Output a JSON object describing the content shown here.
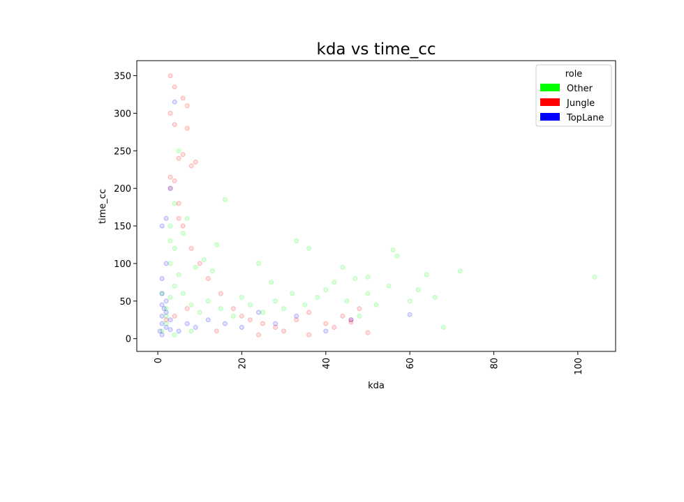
{
  "chart_data": {
    "type": "scatter",
    "title": "kda vs time_cc",
    "xlabel": "kda",
    "ylabel": "time_cc",
    "xlim": [
      -5,
      109
    ],
    "ylim": [
      -17,
      370
    ],
    "xticks": [
      0,
      20,
      40,
      60,
      80,
      100
    ],
    "yticks": [
      0,
      50,
      100,
      150,
      200,
      250,
      300,
      350
    ],
    "xtick_labels": [
      "0",
      "20",
      "40",
      "60",
      "80",
      "100"
    ],
    "ytick_labels": [
      "0",
      "50",
      "100",
      "150",
      "200",
      "250",
      "300",
      "350"
    ],
    "legend": {
      "title": "role",
      "placement": "top-right",
      "entries": [
        {
          "label": "Other",
          "color": "#00ff00"
        },
        {
          "label": "Jungle",
          "color": "#ff0000"
        },
        {
          "label": "TopLane",
          "color": "#0000ff"
        }
      ]
    },
    "grid": false,
    "series": [
      {
        "name": "Other",
        "color": "#00ff00",
        "points": [
          [
            2,
            40
          ],
          [
            3,
            55
          ],
          [
            4,
            70
          ],
          [
            5,
            85
          ],
          [
            3,
            100
          ],
          [
            4,
            120
          ],
          [
            2,
            30
          ],
          [
            6,
            60
          ],
          [
            8,
            45
          ],
          [
            10,
            35
          ],
          [
            12,
            50
          ],
          [
            15,
            40
          ],
          [
            18,
            30
          ],
          [
            20,
            55
          ],
          [
            22,
            45
          ],
          [
            25,
            35
          ],
          [
            28,
            50
          ],
          [
            30,
            40
          ],
          [
            32,
            60
          ],
          [
            35,
            45
          ],
          [
            38,
            55
          ],
          [
            40,
            65
          ],
          [
            42,
            75
          ],
          [
            45,
            50
          ],
          [
            47,
            80
          ],
          [
            50,
            60
          ],
          [
            52,
            45
          ],
          [
            55,
            70
          ],
          [
            57,
            110
          ],
          [
            60,
            50
          ],
          [
            62,
            65
          ],
          [
            64,
            85
          ],
          [
            66,
            55
          ],
          [
            68,
            15
          ],
          [
            72,
            90
          ],
          [
            104,
            82
          ],
          [
            3,
            150
          ],
          [
            4,
            180
          ],
          [
            5,
            250
          ],
          [
            3,
            130
          ],
          [
            6,
            140
          ],
          [
            7,
            160
          ],
          [
            2,
            20
          ],
          [
            1,
            10
          ],
          [
            9,
            95
          ],
          [
            11,
            105
          ],
          [
            14,
            125
          ],
          [
            16,
            185
          ],
          [
            13,
            90
          ],
          [
            24,
            100
          ],
          [
            27,
            75
          ],
          [
            33,
            130
          ],
          [
            36,
            120
          ],
          [
            44,
            95
          ],
          [
            48,
            30
          ],
          [
            50,
            82
          ],
          [
            56,
            118
          ],
          [
            4,
            5
          ],
          [
            8,
            10
          ],
          [
            1,
            60
          ]
        ]
      },
      {
        "name": "Jungle",
        "color": "#ff0000",
        "points": [
          [
            3,
            350
          ],
          [
            4,
            335
          ],
          [
            3,
            300
          ],
          [
            4,
            285
          ],
          [
            6,
            320
          ],
          [
            7,
            310
          ],
          [
            7,
            280
          ],
          [
            5,
            240
          ],
          [
            6,
            245
          ],
          [
            8,
            230
          ],
          [
            9,
            235
          ],
          [
            4,
            210
          ],
          [
            3,
            200
          ],
          [
            5,
            180
          ],
          [
            3,
            215
          ],
          [
            5,
            160
          ],
          [
            6,
            150
          ],
          [
            8,
            120
          ],
          [
            10,
            100
          ],
          [
            12,
            80
          ],
          [
            15,
            60
          ],
          [
            18,
            40
          ],
          [
            20,
            30
          ],
          [
            22,
            25
          ],
          [
            25,
            20
          ],
          [
            28,
            15
          ],
          [
            30,
            10
          ],
          [
            33,
            25
          ],
          [
            36,
            35
          ],
          [
            40,
            20
          ],
          [
            42,
            15
          ],
          [
            44,
            30
          ],
          [
            46,
            25
          ],
          [
            48,
            40
          ],
          [
            50,
            8
          ],
          [
            46,
            22
          ],
          [
            2,
            25
          ],
          [
            4,
            30
          ],
          [
            7,
            40
          ],
          [
            14,
            10
          ],
          [
            24,
            5
          ],
          [
            36,
            5
          ]
        ]
      },
      {
        "name": "TopLane",
        "color": "#0000ff",
        "points": [
          [
            0.5,
            10
          ],
          [
            1,
            20
          ],
          [
            1,
            30
          ],
          [
            1.5,
            40
          ],
          [
            2,
            50
          ],
          [
            1,
            60
          ],
          [
            1,
            80
          ],
          [
            2,
            100
          ],
          [
            1,
            150
          ],
          [
            2,
            160
          ],
          [
            3,
            200
          ],
          [
            4,
            315
          ],
          [
            1,
            5
          ],
          [
            2,
            15
          ],
          [
            3,
            25
          ],
          [
            5,
            10
          ],
          [
            7,
            20
          ],
          [
            9,
            15
          ],
          [
            12,
            25
          ],
          [
            16,
            20
          ],
          [
            20,
            15
          ],
          [
            24,
            35
          ],
          [
            28,
            20
          ],
          [
            33,
            30
          ],
          [
            40,
            10
          ],
          [
            46,
            25
          ],
          [
            60,
            32
          ],
          [
            2,
            35
          ],
          [
            1,
            45
          ],
          [
            3,
            12
          ]
        ]
      }
    ]
  }
}
